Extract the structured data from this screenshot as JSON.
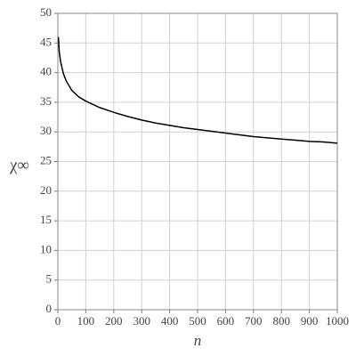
{
  "chart_data": {
    "type": "line",
    "xlabel": "n",
    "ylabel": "χ∞",
    "x": [
      2,
      5,
      10,
      20,
      30,
      50,
      75,
      100,
      150,
      200,
      250,
      300,
      350,
      400,
      450,
      500,
      550,
      600,
      650,
      700,
      750,
      800,
      850,
      900,
      950,
      1000
    ],
    "series": [
      {
        "name": "χ∞",
        "color": "#000000",
        "values": [
          46,
          43.5,
          41.8,
          39.8,
          38.6,
          37.0,
          35.9,
          35.2,
          34.1,
          33.3,
          32.6,
          32.0,
          31.5,
          31.1,
          30.7,
          30.4,
          30.1,
          29.8,
          29.5,
          29.2,
          29.0,
          28.8,
          28.6,
          28.4,
          28.3,
          28.1
        ]
      }
    ],
    "xlim": [
      0,
      1000
    ],
    "ylim": [
      0,
      50
    ],
    "xticks": [
      0,
      100,
      200,
      300,
      400,
      500,
      600,
      700,
      800,
      900,
      1000
    ],
    "yticks": [
      0,
      5,
      10,
      15,
      20,
      25,
      30,
      35,
      40,
      45,
      50
    ],
    "grid": true
  }
}
